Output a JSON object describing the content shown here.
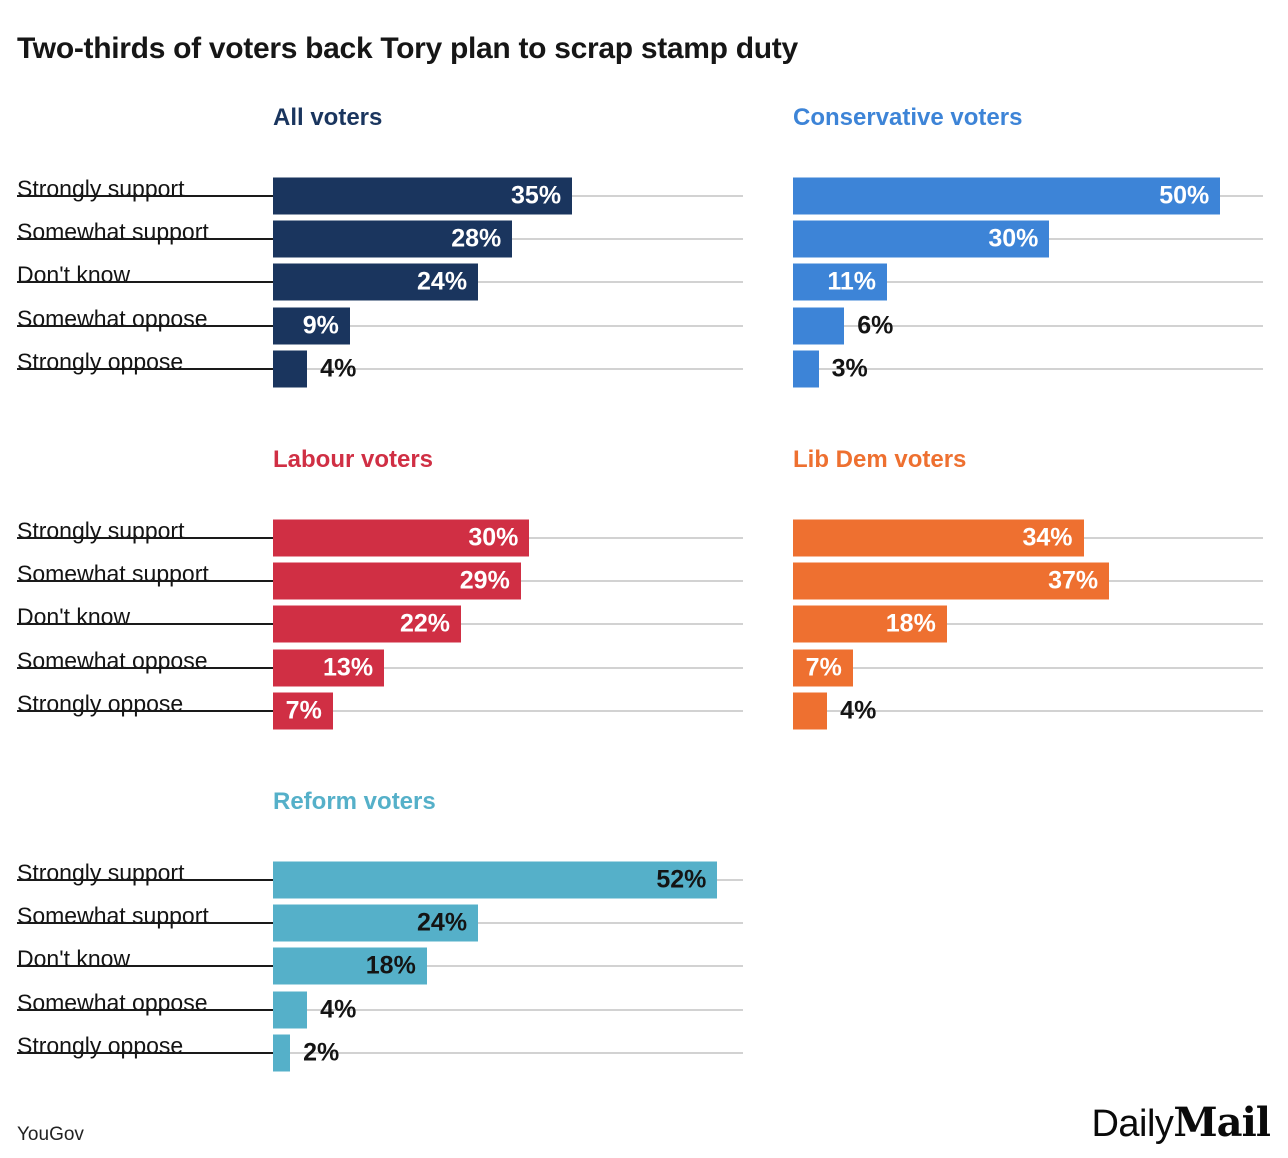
{
  "title": "Two-thirds of voters back Tory plan to scrap stamp duty",
  "source": "YouGov",
  "brand": {
    "daily": "Daily",
    "mail": "Mail"
  },
  "chart_data": {
    "type": "bar",
    "orientation": "horizontal",
    "title": "Two-thirds of voters back Tory plan to scrap stamp duty",
    "unit": "%",
    "axis_max": 55,
    "grid": "on",
    "categories": [
      "Strongly support",
      "Somewhat support",
      "Don't know",
      "Somewhat oppose",
      "Strongly oppose"
    ],
    "charts": [
      {
        "header": "All voters",
        "color": "#1a355e",
        "inside_label_color": "#ffffff",
        "rows": [
          {
            "category": "Strongly support",
            "value": 35,
            "label": "35%",
            "placement": "inside"
          },
          {
            "category": "Somewhat support",
            "value": 28,
            "label": "28%",
            "placement": "inside"
          },
          {
            "category": "Don't know",
            "value": 24,
            "label": "24%",
            "placement": "inside"
          },
          {
            "category": "Somewhat oppose",
            "value": 9,
            "label": "9%",
            "placement": "inside"
          },
          {
            "category": "Strongly oppose",
            "value": 4,
            "label": "4%",
            "placement": "outside"
          }
        ]
      },
      {
        "header": "Conservative voters",
        "color": "#3d84d7",
        "inside_label_color": "#ffffff",
        "rows": [
          {
            "category": "Strongly support",
            "value": 50,
            "label": "50%",
            "placement": "inside"
          },
          {
            "category": "Somewhat support",
            "value": 30,
            "label": "30%",
            "placement": "inside"
          },
          {
            "category": "Don't know",
            "value": 11,
            "label": "11%",
            "placement": "inside"
          },
          {
            "category": "Somewhat oppose",
            "value": 6,
            "label": "6%",
            "placement": "outside"
          },
          {
            "category": "Strongly oppose",
            "value": 3,
            "label": "3%",
            "placement": "outside"
          }
        ]
      },
      {
        "header": "Labour voters",
        "color": "#d02f44",
        "inside_label_color": "#ffffff",
        "rows": [
          {
            "category": "Strongly support",
            "value": 30,
            "label": "30%",
            "placement": "inside"
          },
          {
            "category": "Somewhat support",
            "value": 29,
            "label": "29%",
            "placement": "inside"
          },
          {
            "category": "Don't know",
            "value": 22,
            "label": "22%",
            "placement": "inside"
          },
          {
            "category": "Somewhat oppose",
            "value": 13,
            "label": "13%",
            "placement": "inside"
          },
          {
            "category": "Strongly oppose",
            "value": 7,
            "label": "7%",
            "placement": "inside"
          }
        ]
      },
      {
        "header": "Lib Dem voters",
        "color": "#ee7030",
        "inside_label_color": "#ffffff",
        "rows": [
          {
            "category": "Strongly support",
            "value": 34,
            "label": "34%",
            "placement": "inside"
          },
          {
            "category": "Somewhat support",
            "value": 37,
            "label": "37%",
            "placement": "inside"
          },
          {
            "category": "Don't know",
            "value": 18,
            "label": "18%",
            "placement": "inside"
          },
          {
            "category": "Somewhat oppose",
            "value": 7,
            "label": "7%",
            "placement": "inside"
          },
          {
            "category": "Strongly oppose",
            "value": 4,
            "label": "4%",
            "placement": "outside"
          }
        ]
      },
      {
        "header": "Reform voters",
        "color": "#55b0c9",
        "inside_label_color": "#141414",
        "rows": [
          {
            "category": "Strongly support",
            "value": 52,
            "label": "52%",
            "placement": "inside"
          },
          {
            "category": "Somewhat support",
            "value": 24,
            "label": "24%",
            "placement": "inside"
          },
          {
            "category": "Don't know",
            "value": 18,
            "label": "18%",
            "placement": "inside"
          },
          {
            "category": "Somewhat oppose",
            "value": 4,
            "label": "4%",
            "placement": "outside"
          },
          {
            "category": "Strongly oppose",
            "value": 2,
            "label": "2%",
            "placement": "outside"
          }
        ]
      }
    ]
  }
}
